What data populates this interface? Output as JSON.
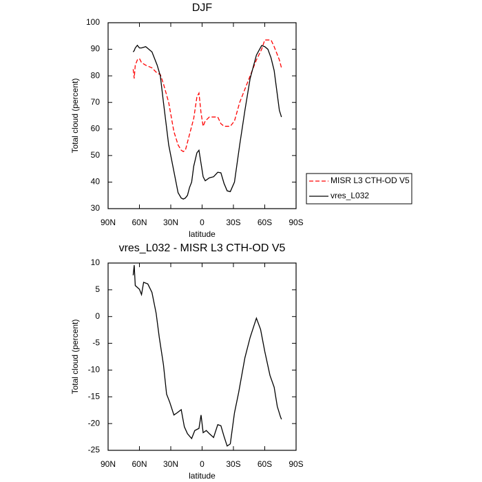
{
  "chart_data": [
    {
      "type": "line",
      "title": "DJF",
      "xlabel": "latitude",
      "ylabel": "Total cloud (percent)",
      "x": [
        66,
        65,
        64,
        62,
        60,
        58,
        54,
        48,
        43,
        40,
        37,
        32,
        27,
        23,
        20,
        18,
        16,
        14,
        12,
        10,
        8,
        5,
        3,
        1,
        -1,
        -3,
        -7,
        -11,
        -15,
        -18,
        -21,
        -24,
        -27,
        -31,
        -36,
        -41,
        -46,
        -52,
        -57,
        -60,
        -63,
        -66,
        -69,
        -72,
        -74,
        -76
      ],
      "series": [
        {
          "name": "MISR L3 CTH-OD V5",
          "color": "#ff0000",
          "line_style": "dashed",
          "values": [
            82.5,
            79,
            84,
            86,
            86.5,
            85,
            84,
            83,
            81,
            80.5,
            77,
            70,
            59,
            54,
            52,
            51.5,
            52,
            55,
            58,
            61,
            64,
            72,
            73.5,
            66,
            61,
            63,
            64.5,
            64.5,
            64.5,
            62,
            61,
            61,
            61,
            63,
            70,
            75,
            80,
            86,
            90,
            93.5,
            93.5,
            93.5,
            91,
            88,
            86,
            83
          ]
        },
        {
          "name": "vres_L032",
          "color": "#000000",
          "line_style": "solid",
          "values": [
            89,
            89.5,
            90.5,
            91.5,
            90.5,
            90.5,
            91,
            89,
            84,
            80,
            70,
            54,
            44,
            36,
            34,
            33.6,
            34,
            35,
            38,
            40,
            46,
            51,
            52,
            47,
            42,
            40.5,
            41.6,
            42,
            43.7,
            43.5,
            39.5,
            36.7,
            36.4,
            40,
            54,
            67,
            79,
            87.8,
            91.4,
            91,
            90,
            86.8,
            82,
            73,
            67,
            64.5
          ]
        }
      ],
      "xlim": [
        90,
        -90
      ],
      "xticks": [
        {
          "value": 90,
          "label": "90N"
        },
        {
          "value": 60,
          "label": "60N"
        },
        {
          "value": 30,
          "label": "30N"
        },
        0,
        {
          "value": -30,
          "label": "30S"
        },
        {
          "value": -60,
          "label": "60S"
        },
        {
          "value": -90,
          "label": "90S"
        }
      ],
      "ylim": [
        30,
        100
      ],
      "yticks": [
        30,
        40,
        50,
        60,
        70,
        80,
        90,
        100
      ],
      "legend": "right"
    },
    {
      "type": "line",
      "title": "vres_L032 - MISR L3 CTH-OD V5",
      "xlabel": "latitude",
      "ylabel": "Total cloud (percent)",
      "x": [
        66,
        65,
        64,
        60,
        58,
        56,
        52,
        48,
        44,
        41,
        37,
        34,
        31,
        27,
        24,
        20,
        17,
        14,
        10,
        7,
        3,
        1,
        -1,
        -4,
        -7,
        -11,
        -15,
        -18,
        -21,
        -24,
        -27,
        -31,
        -35,
        -41,
        -46,
        -52,
        -56,
        -60,
        -65,
        -69,
        -72,
        -75,
        -76
      ],
      "values": [
        7.7,
        9.6,
        5.8,
        5.1,
        4.1,
        6.4,
        6.1,
        4.5,
        0.6,
        -3.9,
        -9,
        -14.5,
        -16,
        -18.4,
        -18,
        -17.4,
        -20.6,
        -21.9,
        -22.8,
        -21.3,
        -20.9,
        -18.4,
        -21.7,
        -21.3,
        -21.9,
        -22.6,
        -20.2,
        -20.4,
        -22.4,
        -24.2,
        -23.8,
        -18,
        -14.2,
        -7.7,
        -3.9,
        -0.3,
        -2.4,
        -6.5,
        -11,
        -13.2,
        -16.8,
        -18.7,
        -19.2
      ],
      "color": "#000000",
      "xlim": [
        90,
        -90
      ],
      "xticks": [
        {
          "value": 90,
          "label": "90N"
        },
        {
          "value": 60,
          "label": "60N"
        },
        {
          "value": 30,
          "label": "30N"
        },
        0,
        {
          "value": -30,
          "label": "30S"
        },
        {
          "value": -60,
          "label": "60S"
        },
        {
          "value": -90,
          "label": "90S"
        }
      ],
      "ylim": [
        -25,
        10
      ],
      "yticks": [
        -25,
        -20,
        -15,
        -10,
        -5,
        0,
        5,
        10
      ]
    }
  ]
}
